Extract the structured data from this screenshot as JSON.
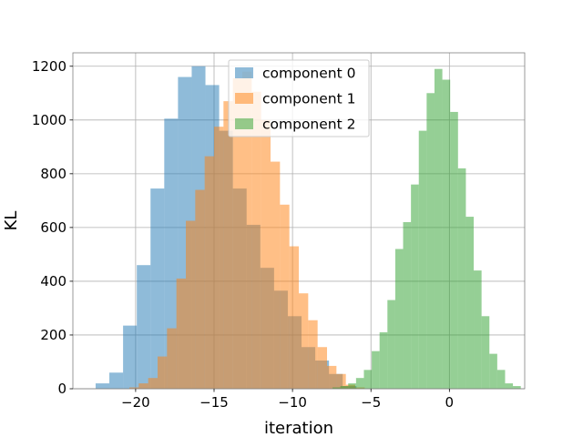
{
  "chart_data": {
    "type": "histogram",
    "title": "",
    "xlabel": "iteration",
    "ylabel": "KL",
    "xlim": [
      -24.0,
      4.8
    ],
    "ylim": [
      0,
      1250
    ],
    "xticks": [
      -20,
      -15,
      -10,
      -5,
      0
    ],
    "xtick_labels": [
      "−20",
      "−15",
      "−10",
      "−5",
      "0"
    ],
    "yticks": [
      0,
      200,
      400,
      600,
      800,
      1000,
      1200
    ],
    "grid": true,
    "legend_position": "top-center",
    "series": [
      {
        "name": "component 0",
        "color": "#1f77b4",
        "opacity": 0.5,
        "bin_start": -22.55,
        "bin_width": 0.875,
        "counts": [
          20,
          60,
          235,
          460,
          745,
          1005,
          1160,
          1200,
          1130,
          960,
          745,
          610,
          450,
          365,
          270,
          155,
          105,
          55,
          10
        ]
      },
      {
        "name": "component 1",
        "color": "#ff7f0e",
        "opacity": 0.5,
        "bin_start": -20.4,
        "bin_width": 0.6,
        "counts": [
          5,
          20,
          40,
          120,
          225,
          410,
          625,
          740,
          865,
          975,
          1070,
          1155,
          1180,
          1105,
          1000,
          845,
          685,
          530,
          355,
          255,
          155,
          85,
          55,
          15,
          5
        ]
      },
      {
        "name": "component 2",
        "color": "#2ca02c",
        "opacity": 0.5,
        "bin_start": -7.45,
        "bin_width": 0.5,
        "counts": [
          5,
          10,
          20,
          40,
          70,
          140,
          210,
          330,
          520,
          620,
          760,
          960,
          1100,
          1190,
          1150,
          1030,
          820,
          640,
          440,
          270,
          130,
          70,
          20,
          10
        ]
      }
    ]
  }
}
